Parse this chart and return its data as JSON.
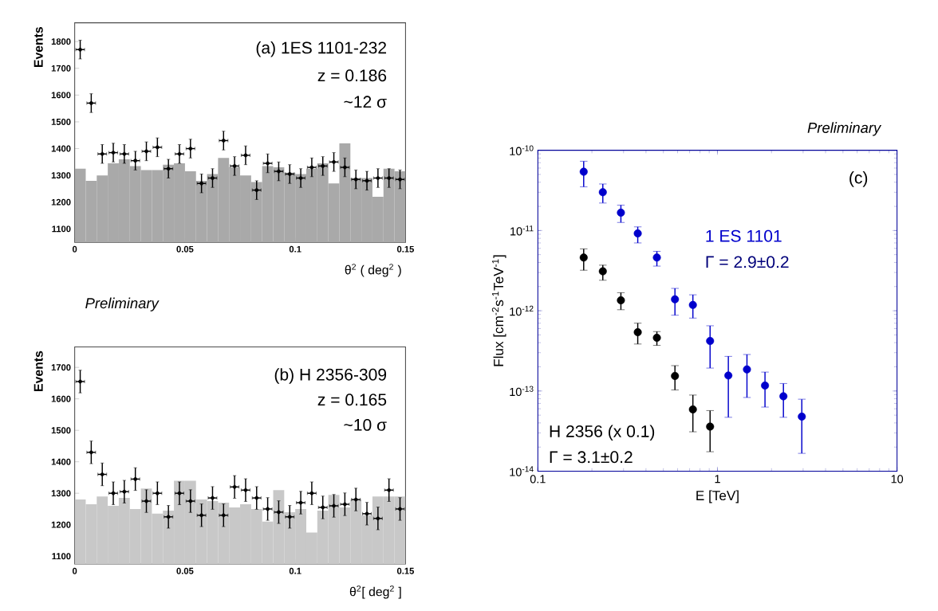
{
  "chart_data": [
    {
      "type": "histogram",
      "xlabel": "θ$^{2}$ ( deg$^{2}$ )",
      "ylabel": "Events",
      "annotations": [
        "(a) 1ES 1101-232",
        "z = 0.186",
        "~12 σ"
      ],
      "bins": [
        0,
        0.005,
        0.01,
        0.015,
        0.02,
        0.025,
        0.03,
        0.035,
        0.04,
        0.045,
        0.05,
        0.055,
        0.06,
        0.065,
        0.07,
        0.075,
        0.08,
        0.085,
        0.09,
        0.095,
        0.1,
        0.105,
        0.11,
        0.115,
        0.12,
        0.125,
        0.13,
        0.135,
        0.14,
        0.145,
        0.15
      ],
      "values": [
        1325,
        1280,
        1300,
        1345,
        1360,
        1335,
        1320,
        1320,
        1340,
        1345,
        1315,
        1280,
        1305,
        1365,
        1330,
        1300,
        1275,
        1335,
        1330,
        1310,
        1305,
        1325,
        1345,
        1270,
        1420,
        1290,
        1290,
        1220,
        1325,
        1315
      ],
      "color": "#a9a9a9",
      "series": [
        {
          "type": "scatter",
          "color": "#000000",
          "marker": "circle",
          "x": [
            0.0025,
            0.0075,
            0.0125,
            0.0175,
            0.0225,
            0.0275,
            0.0325,
            0.0375,
            0.0425,
            0.0475,
            0.0525,
            0.0575,
            0.0625,
            0.0675,
            0.0725,
            0.0775,
            0.0825,
            0.0875,
            0.0925,
            0.0975,
            0.1025,
            0.1075,
            0.1125,
            0.1175,
            0.1225,
            0.1275,
            0.1325,
            0.1375,
            0.1425,
            0.1475
          ],
          "values": [
            1770,
            1570,
            1380,
            1385,
            1380,
            1355,
            1390,
            1405,
            1325,
            1380,
            1400,
            1270,
            1290,
            1430,
            1335,
            1375,
            1245,
            1345,
            1315,
            1305,
            1290,
            1330,
            1335,
            1350,
            1330,
            1285,
            1280,
            1290,
            1290,
            1285
          ],
          "errors": [
            35,
            35,
            35,
            35,
            35,
            35,
            35,
            35,
            35,
            35,
            35,
            35,
            35,
            35,
            35,
            35,
            35,
            35,
            35,
            35,
            35,
            35,
            35,
            35,
            35,
            35,
            35,
            35,
            35,
            35
          ],
          "xerrors": [
            0.002,
            0.002,
            0.002,
            0.002,
            0.002,
            0.002,
            0.002,
            0.002,
            0.002,
            0.002,
            0.002,
            0.002,
            0.002,
            0.002,
            0.002,
            0.002,
            0.002,
            0.002,
            0.002,
            0.002,
            0.002,
            0.002,
            0.002,
            0.002,
            0.002,
            0.002,
            0.002,
            0.002,
            0.002,
            0.002
          ]
        }
      ],
      "xlim": [
        0,
        0.15
      ],
      "ylim": [
        1050,
        1870
      ],
      "xticks": [
        0,
        0.05,
        0.1,
        0.15
      ],
      "yticks": [
        1100,
        1200,
        1300,
        1400,
        1500,
        1600,
        1700,
        1800
      ]
    },
    {
      "type": "histogram",
      "title": "Preliminary",
      "xlabel": "θ$^{2}$[ deg$^{2}$ ]",
      "ylabel": "Events",
      "annotations": [
        "(b)  H 2356-309",
        "z = 0.165",
        "~10 σ"
      ],
      "bins": [
        0,
        0.005,
        0.01,
        0.015,
        0.02,
        0.025,
        0.03,
        0.035,
        0.04,
        0.045,
        0.05,
        0.055,
        0.06,
        0.065,
        0.07,
        0.075,
        0.08,
        0.085,
        0.09,
        0.095,
        0.1,
        0.105,
        0.11,
        0.115,
        0.12,
        0.125,
        0.13,
        0.135,
        0.14,
        0.145,
        0.15
      ],
      "values": [
        1280,
        1265,
        1290,
        1260,
        1285,
        1250,
        1315,
        1235,
        1245,
        1340,
        1340,
        1280,
        1275,
        1270,
        1255,
        1265,
        1250,
        1210,
        1310,
        1240,
        1250,
        1175,
        1245,
        1295,
        1255,
        1280,
        1230,
        1290,
        1290,
        1290
      ],
      "color": "#c8c8c8",
      "series": [
        {
          "type": "scatter",
          "color": "#000000",
          "marker": "circle",
          "x": [
            0.0025,
            0.0075,
            0.0125,
            0.0175,
            0.0225,
            0.0275,
            0.0325,
            0.0375,
            0.0425,
            0.0475,
            0.0525,
            0.0575,
            0.0625,
            0.0675,
            0.0725,
            0.0775,
            0.0825,
            0.0875,
            0.0925,
            0.0975,
            0.1025,
            0.1075,
            0.1125,
            0.1175,
            0.1225,
            0.1275,
            0.1325,
            0.1375,
            0.1425,
            0.1475
          ],
          "values": [
            1655,
            1430,
            1360,
            1300,
            1305,
            1345,
            1275,
            1300,
            1225,
            1300,
            1275,
            1230,
            1285,
            1230,
            1320,
            1310,
            1285,
            1250,
            1240,
            1225,
            1270,
            1300,
            1255,
            1260,
            1265,
            1280,
            1235,
            1220,
            1310,
            1250
          ],
          "errors": [
            36,
            36,
            36,
            36,
            36,
            36,
            36,
            36,
            36,
            36,
            36,
            36,
            36,
            36,
            36,
            36,
            36,
            36,
            36,
            36,
            36,
            36,
            36,
            36,
            36,
            36,
            36,
            36,
            36,
            36
          ],
          "xerrors": [
            0.002,
            0.002,
            0.002,
            0.002,
            0.002,
            0.002,
            0.002,
            0.002,
            0.002,
            0.002,
            0.002,
            0.002,
            0.002,
            0.002,
            0.002,
            0.002,
            0.002,
            0.002,
            0.002,
            0.002,
            0.002,
            0.002,
            0.002,
            0.002,
            0.002,
            0.002,
            0.002,
            0.002,
            0.002,
            0.002
          ]
        }
      ],
      "xlim": [
        0,
        0.15
      ],
      "ylim": [
        1075,
        1765
      ],
      "xticks": [
        0,
        0.05,
        0.1,
        0.15
      ],
      "yticks": [
        1100,
        1200,
        1300,
        1400,
        1500,
        1600,
        1700
      ]
    },
    {
      "type": "scatter",
      "title": "Preliminary",
      "xlabel": "E [TeV]",
      "ylabel": "Flux [cm$^{-2}$s$^{-1}$TeV$^{-1}$]",
      "log": "xy",
      "marker": "circle",
      "annotations": [
        "(c)",
        "Γ = 2.9±0.2",
        "Γ = 3.1±0.2"
      ],
      "series": [
        {
          "name": "1 ES 1101",
          "color": "#0000cc",
          "x": [
            0.18,
            0.23,
            0.29,
            0.36,
            0.46,
            0.58,
            0.73,
            0.91,
            1.15,
            1.46,
            1.84,
            2.33,
            2.95
          ],
          "values": [
            5.4e-11,
            3e-11,
            1.67e-11,
            9.2e-12,
            4.6e-12,
            1.39e-12,
            1.18e-12,
            4.2e-13,
            1.56e-13,
            1.86e-13,
            1.17e-13,
            8.6e-14,
            4.8e-14
          ],
          "errors": [
            [
              3.5e-11,
              7.3e-11
            ],
            [
              2.2e-11,
              3.8e-11
            ],
            [
              1.26e-11,
              2.07e-11
            ],
            [
              7e-12,
              1.11e-11
            ],
            [
              3.6e-12,
              5.5e-12
            ],
            [
              8.8e-13,
              1.9e-12
            ],
            [
              8.1e-13,
              1.58e-12
            ],
            [
              1.93e-13,
              6.5e-13
            ],
            [
              4.7e-14,
              2.7e-13
            ],
            [
              8.3e-14,
              2.85e-13
            ],
            [
              6.3e-14,
              1.72e-13
            ],
            [
              4.7e-14,
              1.24e-13
            ],
            [
              1.67e-14,
              7.9e-14
            ]
          ]
        },
        {
          "name": "H 2356 (x 0.1)",
          "color": "#000000",
          "x": [
            0.18,
            0.23,
            0.29,
            0.36,
            0.46,
            0.58,
            0.73,
            0.91
          ],
          "values": [
            4.6e-12,
            3.1e-12,
            1.35e-12,
            5.4e-13,
            4.6e-13,
            1.54e-13,
            5.9e-14,
            3.6e-14
          ],
          "errors": [
            [
              3.2e-12,
              5.9e-12
            ],
            [
              2.4e-12,
              3.7e-12
            ],
            [
              1.03e-12,
              1.68e-12
            ],
            [
              3.85e-13,
              7e-13
            ],
            [
              3.7e-13,
              5.5e-13
            ],
            [
              1.03e-13,
              2.07e-13
            ],
            [
              3.1e-14,
              8.9e-14
            ],
            [
              1.75e-14,
              5.7e-14
            ]
          ]
        }
      ],
      "xlim": [
        0.1,
        10
      ],
      "ylim": [
        1e-14,
        1e-10
      ],
      "xticks": [
        0.1,
        1,
        10
      ],
      "yticks": [
        {
          "value": 1e-14,
          "label": "10$^{-14}$"
        },
        {
          "value": 1e-13,
          "label": "10$^{-13}$"
        },
        {
          "value": 1e-12,
          "label": "10$^{-12}$"
        },
        {
          "value": 1e-11,
          "label": "10$^{-11}$"
        },
        {
          "value": 1e-10,
          "label": "10$^{-10}$"
        }
      ]
    }
  ]
}
